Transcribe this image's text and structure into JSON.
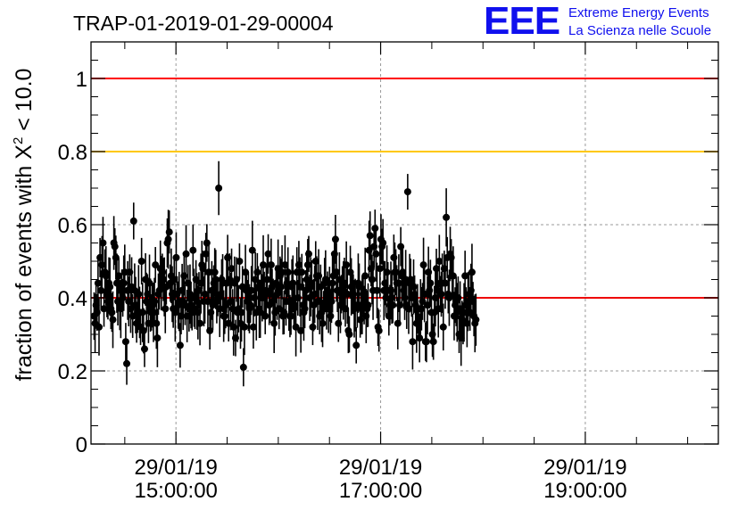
{
  "header": {
    "run_title": "TRAP-01-2019-01-29-00004",
    "logo_text": "EEE",
    "logo_line1": "Extreme Energy Events",
    "logo_line2": "La Scienza nelle Scuole"
  },
  "colors": {
    "reference_line": "#ff0000",
    "threshold_line": "#ffc800",
    "mean_line": "#ee0000",
    "points": "#000000",
    "grid": "#9a9a9a",
    "logo": "#1010ee"
  },
  "chart_data": {
    "type": "scatter",
    "title": "TRAP-01-2019-01-29-00004",
    "ylabel_prefix": "fraction of events with ",
    "ylabel_symbol": "Χ",
    "ylabel_sup": "2",
    "ylabel_suffix": " < 10.0",
    "xlabel": "",
    "ylim": [
      0,
      1.1
    ],
    "xlim_hours": [
      14.17,
      20.3
    ],
    "yticks": [
      "0",
      "0.2",
      "0.4",
      "0.6",
      "0.8",
      "1"
    ],
    "xticks": [
      {
        "hour": 15,
        "date": "29/01/19",
        "time": "15:00:00"
      },
      {
        "hour": 17,
        "date": "29/01/19",
        "time": "17:00:00"
      },
      {
        "hour": 19,
        "date": "29/01/19",
        "time": "19:00:00"
      }
    ],
    "grid": true,
    "reference_lines": [
      {
        "y": 1.0,
        "color": "red"
      },
      {
        "y": 0.8,
        "color": "orange"
      },
      {
        "y": 0.4,
        "color": "red"
      }
    ],
    "series": [
      {
        "x_start_hour": 14.2,
        "x_step_minutes": 0.58,
        "error": 0.065,
        "y": [
          0.35,
          0.33,
          0.38,
          0.36,
          0.44,
          0.32,
          0.51,
          0.42,
          0.49,
          0.55,
          0.37,
          0.47,
          0.46,
          0.41,
          0.39,
          0.44,
          0.43,
          0.37,
          0.36,
          0.34,
          0.55,
          0.54,
          0.51,
          0.44,
          0.39,
          0.46,
          0.38,
          0.37,
          0.42,
          0.4,
          0.44,
          0.47,
          0.28,
          0.22,
          0.42,
          0.39,
          0.47,
          0.37,
          0.43,
          0.35,
          0.61,
          0.42,
          0.38,
          0.33,
          0.36,
          0.41,
          0.36,
          0.32,
          0.5,
          0.36,
          0.31,
          0.26,
          0.45,
          0.39,
          0.41,
          0.33,
          0.44,
          0.38,
          0.36,
          0.38,
          0.36,
          0.39,
          0.49,
          0.33,
          0.29,
          0.41,
          0.42,
          0.48,
          0.44,
          0.47,
          0.45,
          0.43,
          0.37,
          0.43,
          0.55,
          0.56,
          0.58,
          0.44,
          0.46,
          0.41,
          0.37,
          0.45,
          0.36,
          0.51,
          0.41,
          0.38,
          0.39,
          0.27,
          0.35,
          0.42,
          0.39,
          0.46,
          0.38,
          0.52,
          0.35,
          0.44,
          0.37,
          0.41,
          0.38,
          0.36,
          0.53,
          0.4,
          0.37,
          0.45,
          0.39,
          0.36,
          0.42,
          0.33,
          0.44,
          0.49,
          0.48,
          0.39,
          0.41,
          0.52,
          0.55,
          0.39,
          0.47,
          0.31,
          0.36,
          0.42,
          0.38,
          0.44,
          0.47,
          0.45,
          0.39,
          0.4,
          0.7,
          0.37,
          0.41,
          0.45,
          0.44,
          0.35,
          0.35,
          0.38,
          0.44,
          0.51,
          0.33,
          0.45,
          0.39,
          0.48,
          0.37,
          0.32,
          0.44,
          0.29,
          0.45,
          0.36,
          0.37,
          0.5,
          0.33,
          0.36,
          0.43,
          0.21,
          0.32,
          0.47,
          0.42,
          0.39,
          0.39,
          0.37,
          0.38,
          0.42,
          0.53,
          0.32,
          0.4,
          0.45,
          0.36,
          0.47,
          0.43,
          0.37,
          0.36,
          0.44,
          0.4,
          0.49,
          0.41,
          0.35,
          0.42,
          0.45,
          0.52,
          0.38,
          0.41,
          0.49,
          0.43,
          0.39,
          0.33,
          0.36,
          0.44,
          0.41,
          0.48,
          0.37,
          0.46,
          0.43,
          0.47,
          0.35,
          0.36,
          0.49,
          0.39,
          0.44,
          0.47,
          0.39,
          0.35,
          0.35,
          0.43,
          0.44,
          0.37,
          0.38,
          0.32,
          0.47,
          0.4,
          0.49,
          0.43,
          0.31,
          0.47,
          0.38,
          0.36,
          0.37,
          0.42,
          0.45,
          0.49,
          0.52,
          0.4,
          0.43,
          0.44,
          0.32,
          0.38,
          0.41,
          0.5,
          0.46,
          0.39,
          0.46,
          0.35,
          0.43,
          0.36,
          0.33,
          0.37,
          0.44,
          0.45,
          0.37,
          0.42,
          0.38,
          0.41,
          0.35,
          0.39,
          0.44,
          0.46,
          0.52,
          0.56,
          0.47,
          0.42,
          0.33,
          0.45,
          0.38,
          0.41,
          0.43,
          0.42,
          0.44,
          0.37,
          0.49,
          0.41,
          0.31,
          0.3,
          0.47,
          0.43,
          0.41,
          0.41,
          0.37,
          0.38,
          0.27,
          0.38,
          0.44,
          0.43,
          0.34,
          0.37,
          0.38,
          0.41,
          0.38,
          0.46,
          0.35,
          0.37,
          0.38,
          0.53,
          0.57,
          0.48,
          0.45,
          0.42,
          0.54,
          0.59,
          0.52,
          0.42,
          0.32,
          0.31,
          0.48,
          0.56,
          0.54,
          0.55,
          0.42,
          0.44,
          0.4,
          0.47,
          0.42,
          0.35,
          0.38,
          0.42,
          0.4,
          0.38,
          0.51,
          0.47,
          0.47,
          0.44,
          0.33,
          0.44,
          0.38,
          0.54,
          0.46,
          0.47,
          0.42,
          0.4,
          0.45,
          0.38,
          0.69,
          0.37,
          0.44,
          0.45,
          0.4,
          0.28,
          0.43,
          0.41,
          0.38,
          0.33,
          0.37,
          0.33,
          0.29,
          0.37,
          0.37,
          0.39,
          0.49,
          0.41,
          0.28,
          0.28,
          0.38,
          0.47,
          0.42,
          0.44,
          0.36,
          0.3,
          0.28,
          0.36,
          0.4,
          0.48,
          0.42,
          0.37,
          0.5,
          0.41,
          0.41,
          0.44,
          0.32,
          0.48,
          0.44,
          0.62,
          0.51,
          0.41,
          0.4,
          0.52,
          0.51,
          0.46,
          0.46,
          0.35,
          0.38,
          0.39,
          0.36,
          0.4,
          0.3,
          0.37,
          0.29,
          0.34,
          0.33,
          0.36,
          0.46,
          0.38,
          0.33,
          0.39,
          0.41,
          0.36,
          0.42,
          0.47,
          0.39,
          0.35,
          0.33,
          0.34
        ]
      }
    ]
  }
}
